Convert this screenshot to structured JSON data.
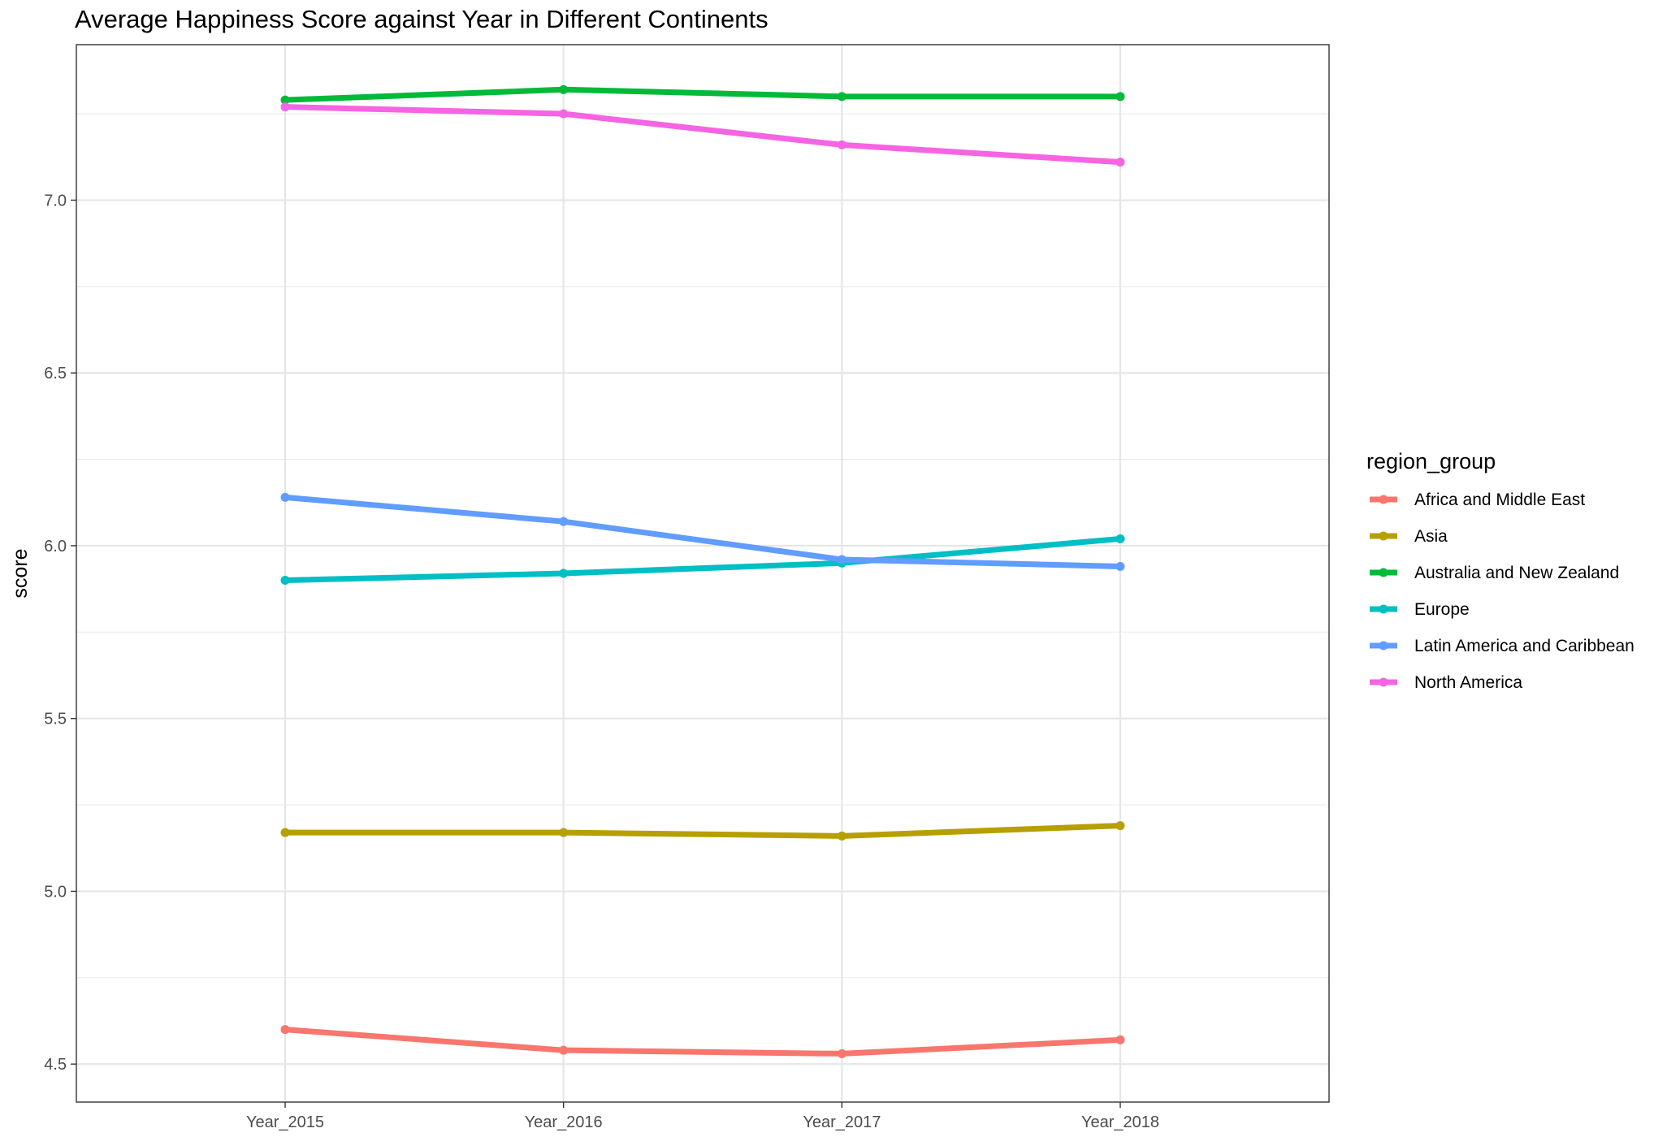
{
  "chart_data": {
    "type": "line",
    "title": "Average Happiness Score against Year in Different Continents",
    "xlabel": "",
    "ylabel": "score",
    "categories": [
      "Year_2015",
      "Year_2016",
      "Year_2017",
      "Year_2018"
    ],
    "ylim": [
      4.39,
      7.45
    ],
    "yticks": [
      4.5,
      5.0,
      5.5,
      6.0,
      6.5,
      7.0
    ],
    "ytick_labels": [
      "4.5",
      "5.0",
      "5.5",
      "6.0",
      "6.5",
      "7.0"
    ],
    "grid": true,
    "legend": {
      "title": "region_group",
      "position": "right"
    },
    "series": [
      {
        "name": "Africa and Middle East",
        "color": "#F8766D",
        "values": [
          4.6,
          4.54,
          4.53,
          4.57
        ]
      },
      {
        "name": "Asia",
        "color": "#B79F00",
        "values": [
          5.17,
          5.17,
          5.16,
          5.19
        ]
      },
      {
        "name": "Australia and New Zealand",
        "color": "#00BA38",
        "values": [
          7.29,
          7.32,
          7.3,
          7.3
        ]
      },
      {
        "name": "Europe",
        "color": "#00BFC4",
        "values": [
          5.9,
          5.92,
          5.95,
          6.02
        ]
      },
      {
        "name": "Latin America and Caribbean",
        "color": "#619CFF",
        "values": [
          6.14,
          6.07,
          5.96,
          5.94
        ]
      },
      {
        "name": "North America",
        "color": "#F564E3",
        "values": [
          7.27,
          7.25,
          7.16,
          7.11
        ]
      }
    ]
  }
}
